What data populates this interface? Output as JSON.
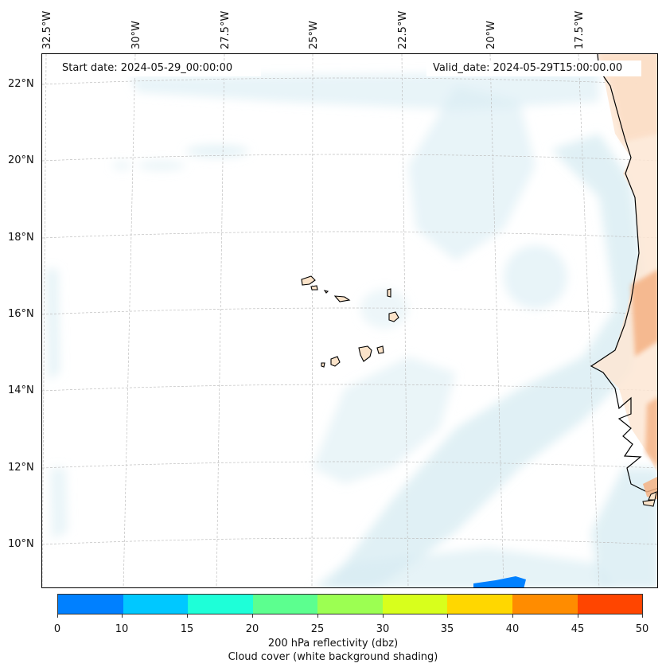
{
  "map": {
    "start_date": "Start date: 2024-05-29_00:00:00",
    "valid_date": "Valid_date: 2024-05-29T15:00:00.00",
    "lon_labels": [
      "32.5°W",
      "30°W",
      "27.5°W",
      "25°W",
      "22.5°W",
      "20°W",
      "17.5°W"
    ],
    "lat_labels": [
      "22°N",
      "20°N",
      "18°N",
      "16°N",
      "14°N",
      "12°N",
      "10°N"
    ],
    "colors": {
      "cloud": "#d6ebf2",
      "cloud_light": "#eaf5f8",
      "land_warm": "#f4b183",
      "land_pale": "#fde6d4",
      "island": "#fbe3c9",
      "reflectivity_blue": "#0080ff",
      "gridline": "#bfbfbf"
    }
  },
  "colorbar": {
    "ticks": [
      "0",
      "10",
      "15",
      "20",
      "25",
      "30",
      "35",
      "40",
      "45",
      "50"
    ],
    "colors": [
      "#0080ff",
      "#00c8ff",
      "#1effd8",
      "#5cff8f",
      "#9cff52",
      "#d8ff1c",
      "#ffd700",
      "#ff8c00",
      "#ff4500"
    ],
    "label_line1": "200 hPa reflectivity (dbz)",
    "label_line2": "Cloud cover (white background shading)"
  }
}
